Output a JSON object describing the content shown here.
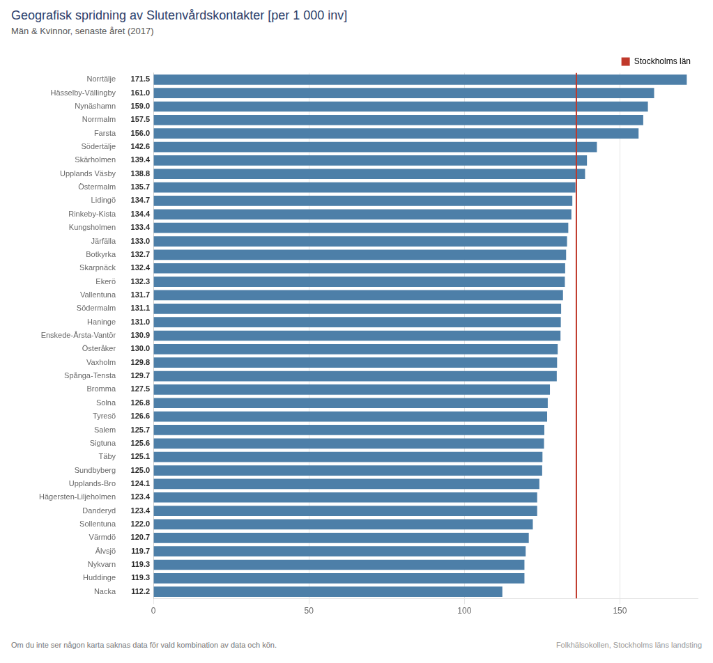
{
  "chart_data": {
    "type": "bar",
    "orientation": "horizontal",
    "title": "Geografisk spridning av Slutenvårdskontakter [per 1 000 inv]",
    "subtitle": "Män & Kvinnor, senaste året (2017)",
    "footer_left": "Om du inte ser någon karta saknas data för vald kombination av data och kön.",
    "footer_right": "Folkhälsokollen, Stockholms läns landsting",
    "categories": [
      "Norrtälje",
      "Hässelby-Vällingby",
      "Nynäshamn",
      "Norrmalm",
      "Farsta",
      "Södertälje",
      "Skärholmen",
      "Upplands Väsby",
      "Östermalm",
      "Lidingö",
      "Rinkeby-Kista",
      "Kungsholmen",
      "Järfälla",
      "Botkyrka",
      "Skarpnäck",
      "Ekerö",
      "Vallentuna",
      "Södermalm",
      "Haninge",
      "Enskede-Årsta-Vantör",
      "Österåker",
      "Vaxholm",
      "Spånga-Tensta",
      "Bromma",
      "Solna",
      "Tyresö",
      "Salem",
      "Sigtuna",
      "Täby",
      "Sundbyberg",
      "Upplands-Bro",
      "Hägersten-Liljeholmen",
      "Danderyd",
      "Sollentuna",
      "Värmdö",
      "Älvsjö",
      "Nykvarn",
      "Huddinge",
      "Nacka"
    ],
    "values": [
      171.5,
      161.0,
      159.0,
      157.5,
      156.0,
      142.6,
      139.4,
      138.8,
      135.7,
      134.7,
      134.4,
      133.4,
      133.0,
      132.7,
      132.4,
      132.3,
      131.7,
      131.1,
      131.0,
      130.9,
      130.0,
      129.8,
      129.7,
      127.5,
      126.8,
      126.6,
      125.7,
      125.6,
      125.1,
      125.0,
      124.1,
      123.4,
      123.4,
      122.0,
      120.7,
      119.7,
      119.3,
      119.3,
      112.2
    ],
    "value_labels": [
      "171.5",
      "161.0",
      "159.0",
      "157.5",
      "156.0",
      "142.6",
      "139.4",
      "138.8",
      "135.7",
      "134.7",
      "134.4",
      "133.4",
      "133.0",
      "132.7",
      "132.4",
      "132.3",
      "131.7",
      "131.1",
      "131.0",
      "130.9",
      "130.0",
      "129.8",
      "129.7",
      "127.5",
      "126.8",
      "126.6",
      "125.7",
      "125.6",
      "125.1",
      "125.0",
      "124.1",
      "123.4",
      "123.4",
      "122.0",
      "120.7",
      "119.7",
      "119.3",
      "119.3",
      "112.2"
    ],
    "data_labels": true,
    "color": "#4d7fa8",
    "reference_line": {
      "value": 136.0,
      "label": "Stockholms län",
      "color": "#c0392b"
    },
    "legend": "top right",
    "xlim": [
      0,
      175
    ],
    "xticks": [
      0,
      50,
      100,
      150
    ],
    "grid": true
  }
}
